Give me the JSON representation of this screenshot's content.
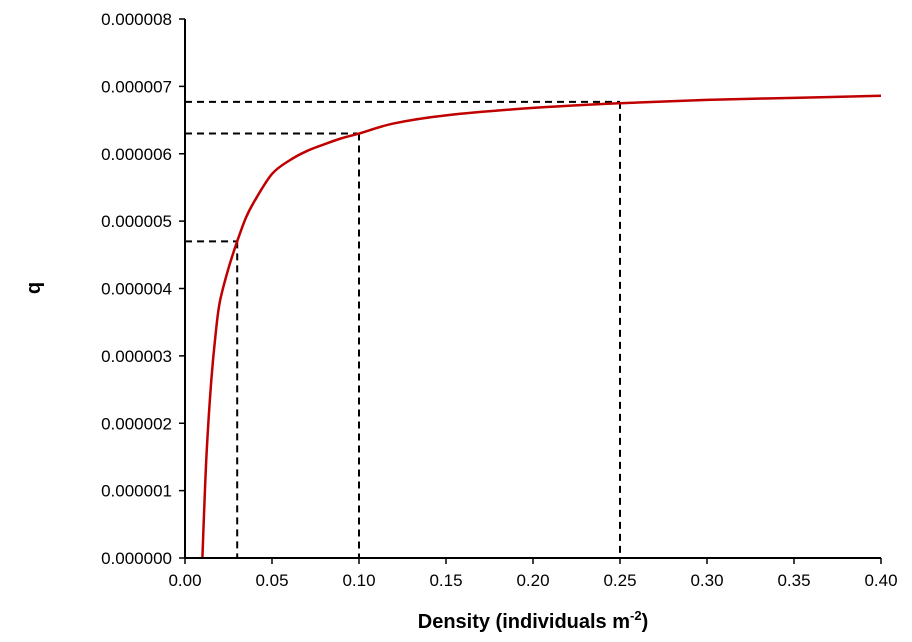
{
  "chart_data": {
    "type": "line",
    "title": "",
    "xlabel": "Density (individuals m",
    "xlabel_superscript": "-2",
    "xlabel_suffix": ")",
    "ylabel": "q",
    "xlim": [
      0,
      0.4
    ],
    "ylim": [
      0,
      8e-06
    ],
    "xticks": [
      0,
      0.05,
      0.1,
      0.15,
      0.2,
      0.25,
      0.3,
      0.35,
      0.4
    ],
    "xtick_labels": [
      "0.00",
      "0.05",
      "0.10",
      "0.15",
      "0.20",
      "0.25",
      "0.30",
      "0.35",
      "0.40"
    ],
    "yticks": [
      0,
      1e-06,
      2e-06,
      3e-06,
      4e-06,
      5e-06,
      6e-06,
      7e-06,
      8e-06
    ],
    "ytick_labels": [
      "0.000000",
      "0.000001",
      "0.000002",
      "0.000003",
      "0.000004",
      "0.000005",
      "0.000006",
      "0.000007",
      "0.000008"
    ],
    "grid": false,
    "legend": "none",
    "series": [
      {
        "color": "#c00000",
        "x": [
          0.01,
          0.011,
          0.0125,
          0.015,
          0.0175,
          0.02,
          0.025,
          0.03,
          0.035,
          0.04,
          0.05,
          0.06,
          0.07,
          0.08,
          0.09,
          0.1,
          0.12,
          0.15,
          0.2,
          0.25,
          0.3,
          0.35,
          0.4
        ],
        "y": [
          0.0,
          7e-07,
          1.6e-06,
          2.6e-06,
          3.3e-06,
          3.8e-06,
          4.3e-06,
          4.7e-06,
          5.05e-06,
          5.3e-06,
          5.7e-06,
          5.9e-06,
          6.04e-06,
          6.14e-06,
          6.23e-06,
          6.3e-06,
          6.45e-06,
          6.57e-06,
          6.68e-06,
          6.75e-06,
          6.8e-06,
          6.83e-06,
          6.86e-06
        ]
      }
    ],
    "reference_lines": [
      {
        "x": 0.03,
        "y": 4.7e-06
      },
      {
        "x": 0.1,
        "y": 6.3e-06
      },
      {
        "x": 0.25,
        "y": 6.77e-06
      }
    ],
    "colors": {
      "curve": "#c00000",
      "reference": "#000000",
      "axis": "#000000"
    }
  }
}
